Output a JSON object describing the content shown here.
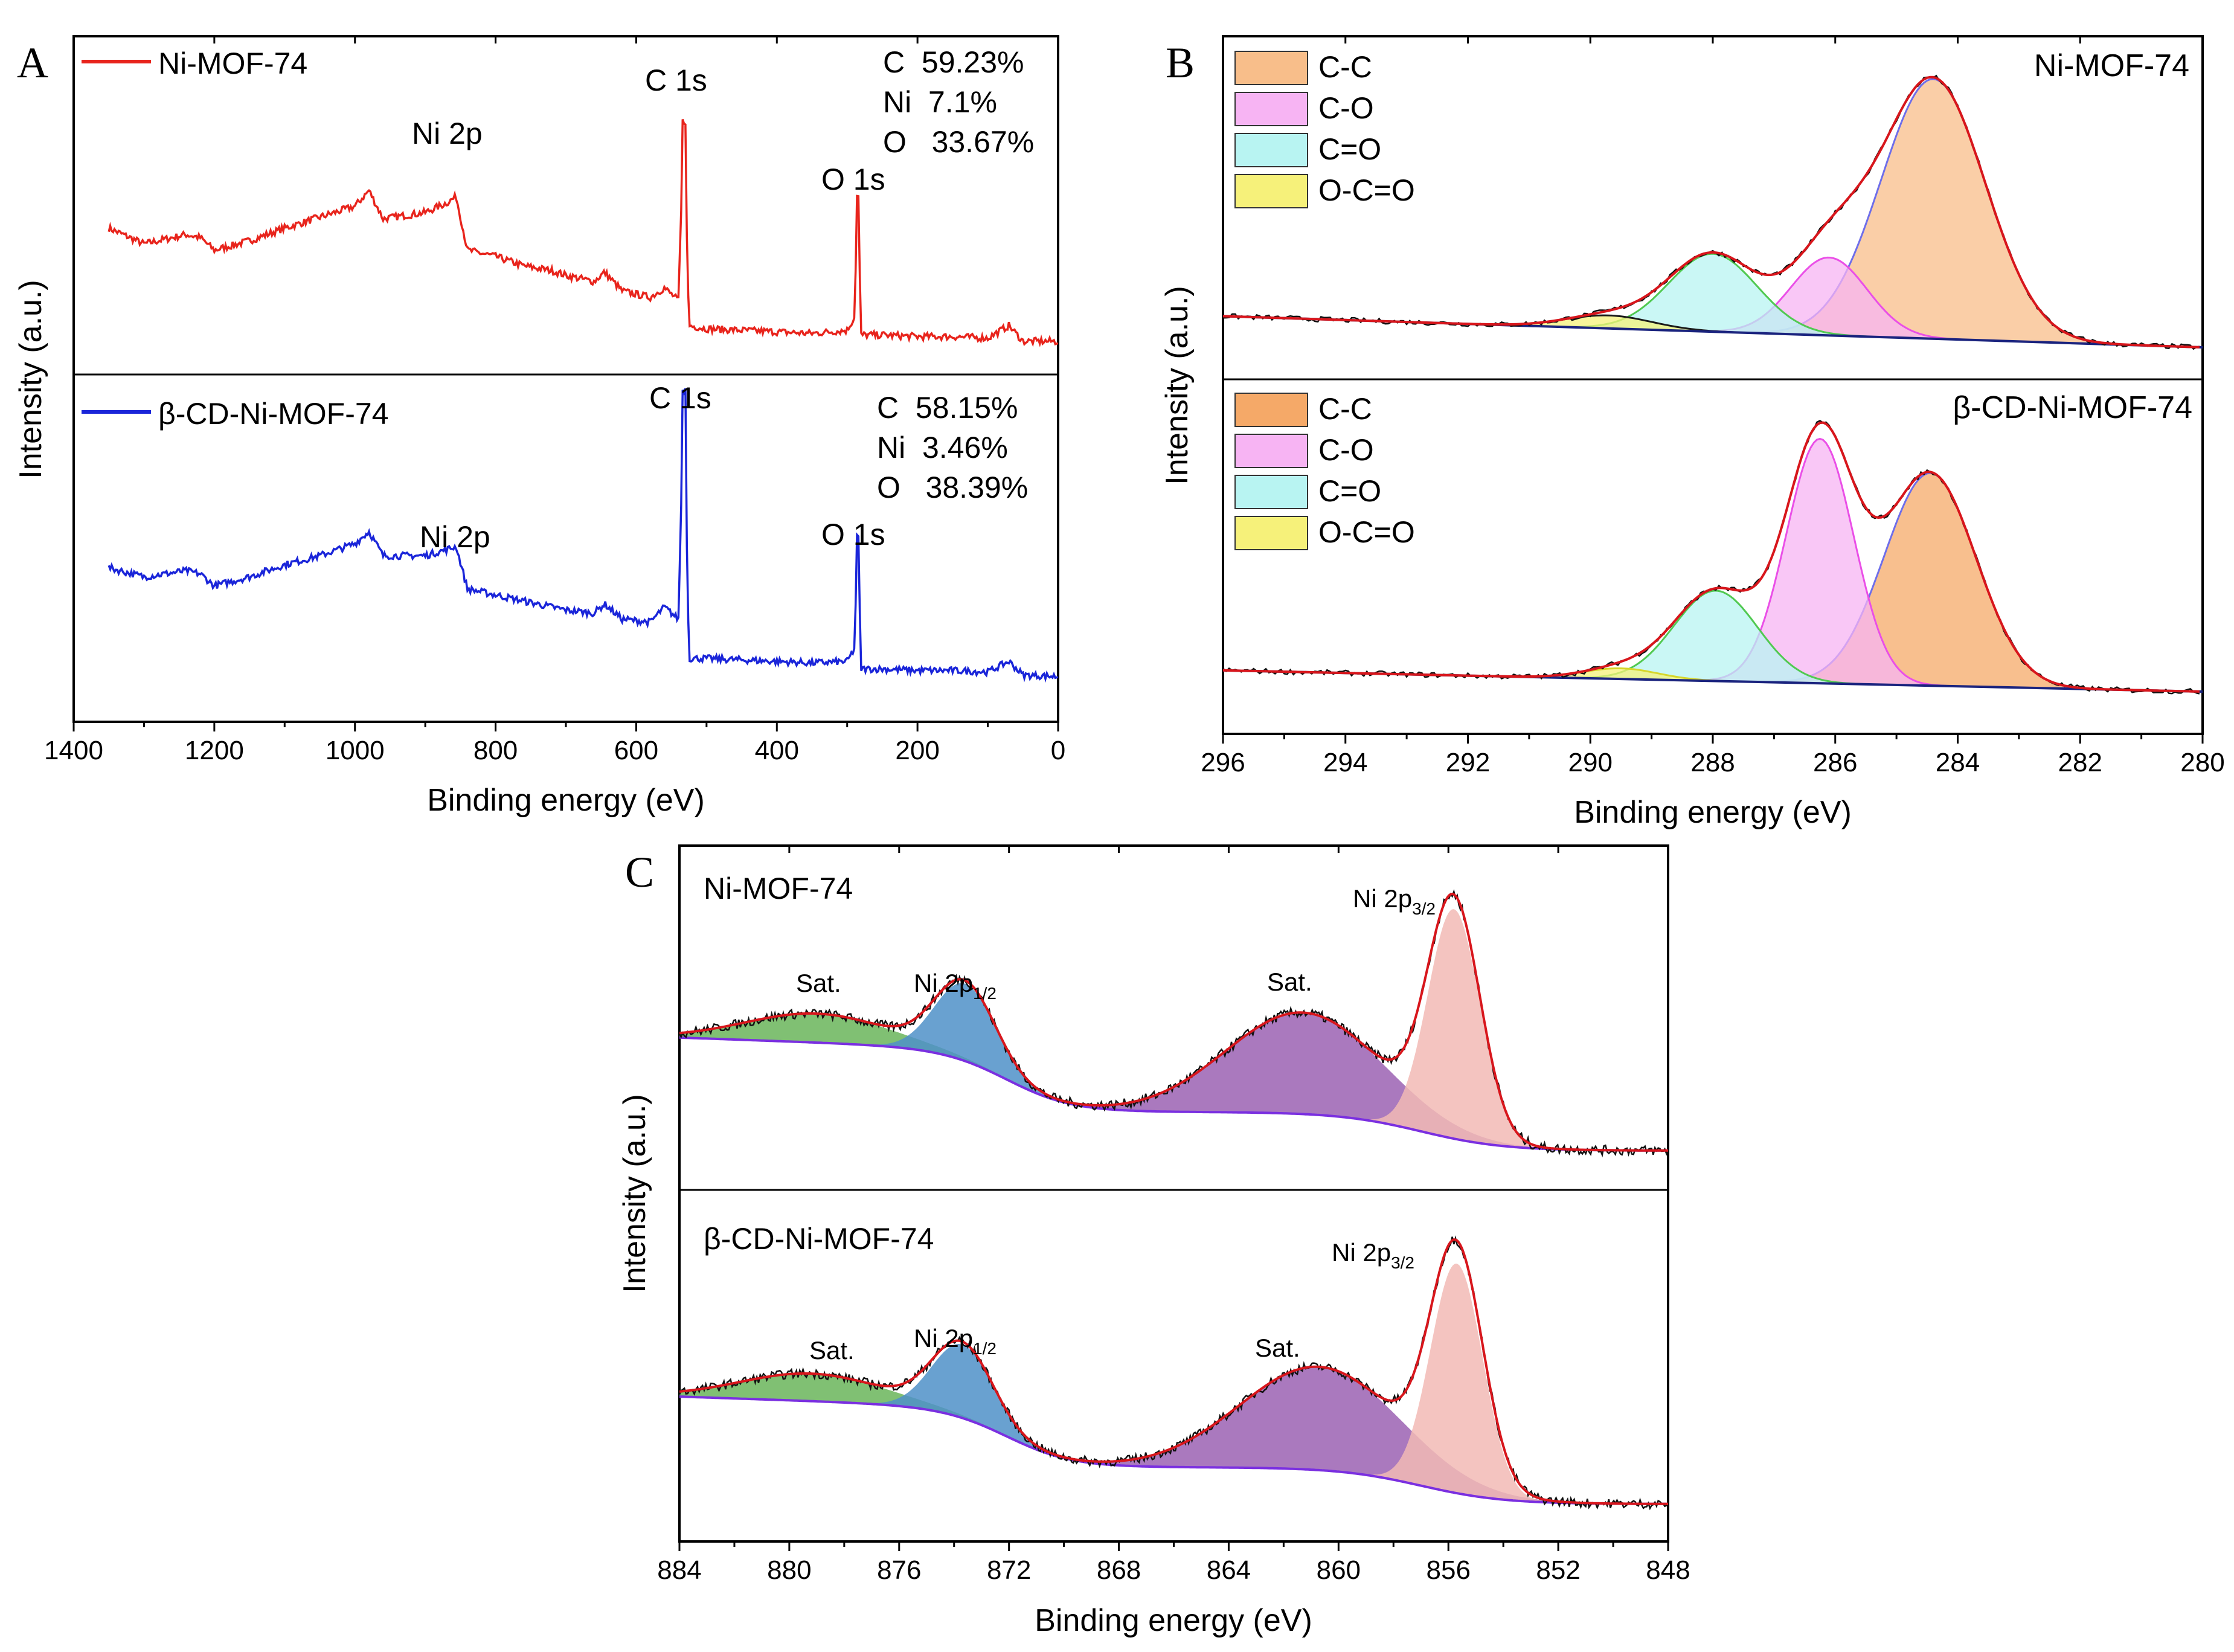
{
  "figure": {
    "panel_labels": [
      "A",
      "B",
      "C"
    ]
  },
  "chart_data": [
    {
      "panel": "A",
      "type": "line",
      "xlabel": "Binding energy (eV)",
      "ylabel": "Intensity (a.u.)",
      "xlim": [
        1400,
        0
      ],
      "x_ticks": [
        1400,
        1200,
        1000,
        800,
        600,
        400,
        200,
        0
      ],
      "subplots": [
        {
          "legend": "Ni-MOF-74",
          "color": "#e8241c",
          "composition": [
            "C  59.23%",
            "Ni  7.1%",
            "O   33.67%"
          ],
          "peak_labels": [
            "Ni 2p",
            "C 1s",
            "O 1s"
          ],
          "peaks_eV": [
            855,
            532,
            285
          ],
          "x": [
            1350,
            1300,
            1240,
            1220,
            1200,
            1150,
            1100,
            1050,
            1000,
            980,
            960,
            900,
            870,
            856,
            840,
            800,
            760,
            720,
            700,
            660,
            645,
            620,
            580,
            560,
            540,
            532,
            525,
            500,
            450,
            400,
            350,
            300,
            290,
            285,
            280,
            250,
            200,
            150,
            100,
            70,
            50,
            0
          ],
          "y": [
            0.72,
            0.62,
            0.68,
            0.66,
            0.58,
            0.64,
            0.72,
            0.79,
            0.86,
            0.96,
            0.78,
            0.82,
            0.88,
            0.92,
            0.58,
            0.54,
            0.48,
            0.45,
            0.42,
            0.38,
            0.44,
            0.32,
            0.28,
            0.34,
            0.26,
            1.4,
            0.1,
            0.08,
            0.07,
            0.06,
            0.05,
            0.07,
            0.15,
            0.92,
            0.04,
            0.04,
            0.03,
            0.03,
            0.02,
            0.1,
            0.0,
            0.0
          ]
        },
        {
          "legend": "β-CD-Ni-MOF-74",
          "color": "#1a25d9",
          "composition": [
            "C  58.15%",
            "Ni  3.46%",
            "O   38.39%"
          ],
          "peak_labels": [
            "Ni 2p",
            "C 1s",
            "O 1s"
          ],
          "peaks_eV": [
            855,
            532,
            285
          ],
          "x": [
            1350,
            1300,
            1240,
            1220,
            1200,
            1150,
            1100,
            1050,
            1000,
            980,
            960,
            900,
            870,
            856,
            840,
            800,
            760,
            720,
            700,
            660,
            645,
            620,
            580,
            560,
            540,
            532,
            525,
            500,
            450,
            400,
            350,
            300,
            290,
            285,
            280,
            250,
            200,
            150,
            100,
            70,
            50,
            0
          ],
          "y": [
            0.72,
            0.66,
            0.7,
            0.68,
            0.6,
            0.66,
            0.74,
            0.8,
            0.88,
            0.96,
            0.8,
            0.8,
            0.84,
            0.86,
            0.58,
            0.54,
            0.5,
            0.46,
            0.44,
            0.42,
            0.48,
            0.38,
            0.36,
            0.46,
            0.38,
            1.9,
            0.12,
            0.12,
            0.11,
            0.1,
            0.09,
            0.1,
            0.18,
            0.92,
            0.05,
            0.05,
            0.04,
            0.04,
            0.03,
            0.1,
            0.01,
            0.0
          ]
        }
      ]
    },
    {
      "panel": "B",
      "type": "line",
      "xlabel": "Binding energy (eV)",
      "ylabel": "Intensity (a.u.)",
      "xlim": [
        296,
        280
      ],
      "x_ticks": [
        296,
        294,
        292,
        290,
        288,
        286,
        284,
        282,
        280
      ],
      "legend": [
        {
          "name": "C-C",
          "color": "#f8be8a"
        },
        {
          "name": "C-O",
          "color": "#f7b4f3"
        },
        {
          "name": "C=O",
          "color": "#b8f4f2"
        },
        {
          "name": "O-C=O",
          "color": "#f6f17a"
        }
      ],
      "subplots": [
        {
          "name": "Ni-MOF-74",
          "background": [
            0.12,
            0.0
          ],
          "components": [
            {
              "name": "C-C",
              "center": 284.4,
              "height": 1.0,
              "sigma": 0.85,
              "fill": "#f8be8a",
              "stroke": "#6e6eea"
            },
            {
              "name": "C-O",
              "center": 286.1,
              "height": 0.3,
              "sigma": 0.62,
              "fill": "#f7b4f3",
              "stroke": "#ea4fe7"
            },
            {
              "name": "C=O",
              "center": 288.0,
              "height": 0.3,
              "sigma": 0.72,
              "fill": "#b8f4f2",
              "stroke": "#51c951"
            },
            {
              "name": "O-C=O",
              "center": 289.7,
              "height": 0.05,
              "sigma": 0.7,
              "fill": "#f6f17a",
              "stroke": "#1a1a1a"
            }
          ]
        },
        {
          "name": "β-CD-Ni-MOF-74",
          "background": [
            0.08,
            0.0
          ],
          "components": [
            {
              "name": "C-C",
              "center": 284.45,
              "height": 0.8,
              "sigma": 0.75,
              "fill": "#f5a968",
              "stroke": "#6e6eea"
            },
            {
              "name": "C-O",
              "center": 286.25,
              "height": 0.92,
              "sigma": 0.55,
              "fill": "#f7b4f3",
              "stroke": "#ea4fe7"
            },
            {
              "name": "C=O",
              "center": 287.95,
              "height": 0.34,
              "sigma": 0.68,
              "fill": "#b8f4f2",
              "stroke": "#51c951"
            },
            {
              "name": "O-C=O",
              "center": 289.5,
              "height": 0.04,
              "sigma": 0.6,
              "fill": "#f6f17a",
              "stroke": "#d6d62b"
            }
          ]
        }
      ]
    },
    {
      "panel": "C",
      "type": "line",
      "xlabel": "Binding energy (eV)",
      "ylabel": "Intensity (a.u.)",
      "xlim": [
        884,
        848
      ],
      "x_ticks": [
        884,
        880,
        876,
        872,
        868,
        864,
        860,
        856,
        852,
        848
      ],
      "subplots": [
        {
          "name": "Ni-MOF-74",
          "labels": {
            "sat1": "Sat.",
            "p12": "Ni 2p",
            "p12_sub": "1/2",
            "sat2": "Sat.",
            "p32": "Ni 2p",
            "p32_sub": "3/2"
          },
          "background": [
            0.42,
            0.16,
            0.0
          ],
          "components": [
            {
              "name": "Sat.",
              "center": 879.0,
              "height": 0.12,
              "sigma": 2.6,
              "fill": "#6ab55a"
            },
            {
              "name": "Ni 2p1/2",
              "center": 873.6,
              "height": 0.32,
              "sigma": 1.1,
              "fill": "#4f90c8"
            },
            {
              "name": "Sat.",
              "center": 861.3,
              "height": 0.42,
              "sigma": 2.8,
              "fill": "#9b62b3"
            },
            {
              "name": "Ni 2p3/2",
              "center": 855.8,
              "height": 0.95,
              "sigma": 0.95,
              "fill": "#f2bab5"
            }
          ]
        },
        {
          "name": "β-CD-Ni-MOF-74",
          "labels": {
            "sat1": "Sat.",
            "p12": "Ni 2p",
            "p12_sub": "1/2",
            "sat2": "Sat.",
            "p32": "Ni 2p",
            "p32_sub": "3/2"
          },
          "background": [
            0.42,
            0.16,
            0.0
          ],
          "components": [
            {
              "name": "Sat.",
              "center": 879.2,
              "height": 0.12,
              "sigma": 2.6,
              "fill": "#6ab55a"
            },
            {
              "name": "Ni 2p1/2",
              "center": 873.7,
              "height": 0.32,
              "sigma": 1.1,
              "fill": "#4f90c8"
            },
            {
              "name": "Sat.",
              "center": 860.7,
              "height": 0.45,
              "sigma": 2.9,
              "fill": "#9b62b3"
            },
            {
              "name": "Ni 2p3/2",
              "center": 855.7,
              "height": 1.0,
              "sigma": 0.95,
              "fill": "#f2bab5"
            }
          ]
        }
      ]
    }
  ]
}
